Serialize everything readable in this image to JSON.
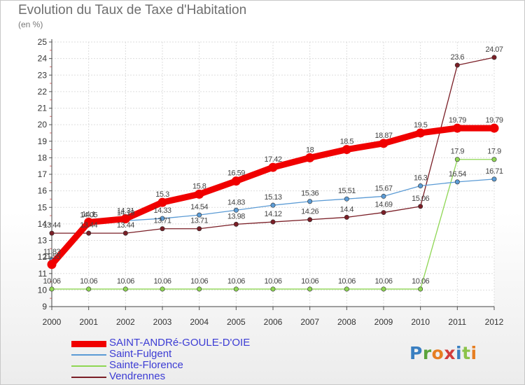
{
  "header": {
    "title": "Evolution du Taux de Taxe d'Habitation",
    "subtitle": "(en %)"
  },
  "logo": {
    "text": "Proxiti",
    "letter_colors": [
      "#3a7fc1",
      "#5ba33b",
      "#e67e22",
      "#d23c3c",
      "#3a7fc1",
      "#8bc34a",
      "#e67e22"
    ]
  },
  "chart_data": {
    "type": "line",
    "title": "Evolution du Taux de Taxe d'Habitation",
    "ylabel": "(en %)",
    "xlabel": "",
    "ylim": [
      9,
      25
    ],
    "yticks": [
      9,
      10,
      11,
      12,
      13,
      14,
      15,
      16,
      17,
      18,
      19,
      20,
      21,
      22,
      23,
      24,
      25
    ],
    "grid": true,
    "legend_position": "bottom-left",
    "x": [
      2000,
      2001,
      2002,
      2003,
      2004,
      2005,
      2006,
      2007,
      2008,
      2009,
      2010,
      2011,
      2012
    ],
    "series": [
      {
        "name": "Vendrennes",
        "color": "#7a1e26",
        "values": [
          13.44,
          13.44,
          13.44,
          13.71,
          13.71,
          13.98,
          14.12,
          14.26,
          14.4,
          14.69,
          15.06,
          23.6,
          24.07
        ],
        "labels": [
          "13.44",
          "13.44",
          "13.44",
          "13.71",
          "13.71",
          "13.98",
          "14.12",
          "14.26",
          "14.4",
          "14.69",
          "15.06",
          "23.6",
          "24.07"
        ]
      },
      {
        "name": "Sainte-Florence",
        "color": "#8ed653",
        "values": [
          10.06,
          10.06,
          10.06,
          10.06,
          10.06,
          10.06,
          10.06,
          10.06,
          10.06,
          10.06,
          10.06,
          17.9,
          17.9
        ],
        "labels": [
          "10.06",
          "10.06",
          "10.06",
          "10.06",
          "10.06",
          "10.06",
          "10.06",
          "10.06",
          "10.06",
          "10.06",
          "10.06",
          "17.9",
          "17.9"
        ]
      },
      {
        "name": "Saint-Fulgent",
        "color": "#5b9bd5",
        "values": [
          11.83,
          14.05,
          14.19,
          14.33,
          14.54,
          14.83,
          15.13,
          15.36,
          15.51,
          15.67,
          16.3,
          16.54,
          16.71
        ],
        "labels": [
          "11.83",
          "14.05",
          "14.19",
          "14.33",
          "14.54",
          "14.83",
          "15.13",
          "15.36",
          "15.51",
          "15.67",
          "16.3",
          "16.54",
          "16.71"
        ]
      },
      {
        "name": "SAINT-ANDRé-GOULE-D'OIE",
        "color": "#f00000",
        "values": [
          11.55,
          14.1,
          14.31,
          15.3,
          15.8,
          16.59,
          17.42,
          18.0,
          18.5,
          18.87,
          19.5,
          19.79,
          19.79
        ],
        "labels": [
          "11.55",
          "14.1",
          "14.31",
          "15.3",
          "15.8",
          "16.59",
          "17.42",
          "18",
          "18.5",
          "18.87",
          "19.5",
          "19.79",
          "19.79"
        ]
      }
    ],
    "legend": [
      {
        "name": "SAINT-ANDRé-GOULE-D'OIE",
        "color": "#f00000",
        "thick": true
      },
      {
        "name": "Saint-Fulgent",
        "color": "#5b9bd5",
        "thick": false
      },
      {
        "name": "Sainte-Florence",
        "color": "#8ed653",
        "thick": false
      },
      {
        "name": "Vendrennes",
        "color": "#7a1e26",
        "thick": false
      }
    ]
  }
}
